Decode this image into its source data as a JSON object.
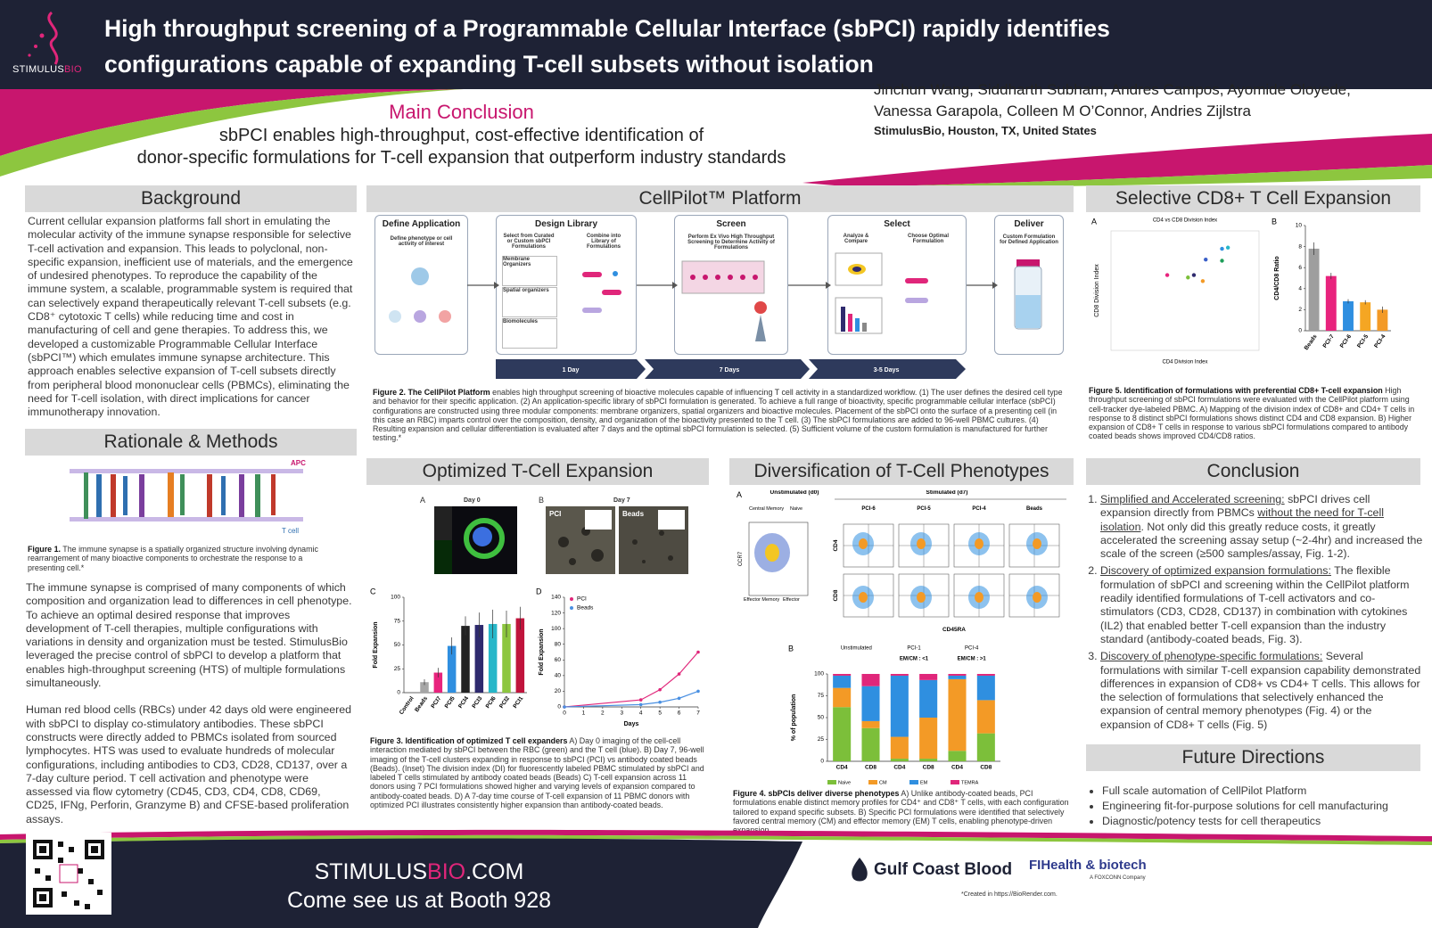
{
  "header": {
    "logo_parts": [
      "STIMULUS",
      "BIO"
    ],
    "title_lines": [
      "High throughput screening of a Programmable Cellular Interface (sbPCI) rapidly identifies",
      "configurations capable of expanding T-cell subsets without isolation"
    ],
    "main_conclusion": {
      "heading": "Main Conclusion",
      "lines": [
        "sbPCI enables high-throughput, cost-effective identification of",
        "donor-specific formulations for T-cell expansion that outperform industry standards"
      ]
    },
    "authors_lines": [
      "Jinchun Wang, Siddharth Subham, Andres Campos, Ayomide Oloyede,",
      "Vanessa Garapola, Colleen M O’Connor, Andries Zijlstra"
    ],
    "affiliation": "StimulusBio, Houston, TX, United States"
  },
  "background": {
    "heading": "Background",
    "text": "Current cellular expansion platforms fall short in emulating the molecular activity of the immune synapse responsible for selective T-cell activation and expansion. This leads to polyclonal, non-specific expansion, inefficient use of materials, and the emergence of undesired phenotypes. To reproduce the capability of the immune system, a scalable, programmable system is required that can selectively expand therapeutically relevant T-cell subsets (e.g. CD8⁺ cytotoxic T cells) while reducing time and cost in manufacturing of cell and gene therapies. To address this, we developed a customizable Programmable Cellular Interface (sbPCI™) which emulates immune synapse architecture. This approach enables selective expansion of T-cell subsets directly from peripheral blood mononuclear cells (PBMCs), eliminating the need for T-cell isolation, with direct implications for cancer immunotherapy innovation."
  },
  "rationale": {
    "heading": "Rationale & Methods",
    "figure_labels": {
      "top": "APC",
      "bottom": "T cell"
    },
    "caption_label": "Figure 1.",
    "caption": " The immune synapse is a spatially organized structure involving dynamic rearrangement of many bioactive components to orchestrate the response to a presenting cell.*",
    "paragraphs": [
      "The immune synapse is comprised of many components of which composition and organization lead to differences in cell phenotype. To achieve an optimal desired response that improves development of T-cell therapies, multiple configurations with variations in density and organization must be tested. StimulusBio leveraged the precise control of sbPCI to develop a platform that enables high-throughput screening (HTS) of multiple formulations simultaneously.",
      "Human red blood cells (RBCs) under 42 days old were engineered with sbPCI to display co-stimulatory antibodies. These sbPCI constructs were directly added to PBMCs isolated from sourced lymphocytes. HTS was used to evaluate hundreds of molecular configurations, including antibodies to CD3, CD28, CD137, over a 7-day culture period. T cell activation and phenotype were assessed via flow cytometry (CD45, CD3, CD4, CD8, CD69, CD25, IFNg, Perforin, Granzyme B) and CFSE-based proliferation assays."
    ]
  },
  "platform": {
    "heading": "CellPilot™ Platform",
    "steps": [
      {
        "title": "Define Application",
        "notes": [
          "Define phenotype or cell activity of interest"
        ]
      },
      {
        "title": "Design Library",
        "notes": [
          "Select from Curated or Custom sbPCI Formulations",
          "Combine into Library of Formulations",
          "Membrane Organizers",
          "Spatial organizers",
          "Biomolecules"
        ]
      },
      {
        "title": "Screen",
        "notes": [
          "Perform Ex Vivo High Throughput Screening to Determine Activity of Formulations"
        ]
      },
      {
        "title": "Select",
        "notes": [
          "Analyze & Compare",
          "Choose Optimal Formulation"
        ]
      },
      {
        "title": "Deliver",
        "notes": [
          "Custom Formulation for Defined Application"
        ]
      }
    ],
    "timeline": [
      "1 Day",
      "7 Days",
      "3-5 Days"
    ],
    "caption_label": "Figure 2. The CellPilot Platform",
    "caption": " enables high throughput screening of bioactive molecules capable of influencing T cell activity in a standardized workflow. (1) The user defines the desired cell type and behavior for their specific application. (2) An application-specific library of sbPCI formulation is generated. To achieve a full range of bioactivity, specific programmable cellular interface (sbPCI) configurations are constructed using three modular components: membrane organizers, spatial organizers and bioactive molecules. Placement of the sbPCI onto the surface of a presenting cell (in this case an RBC) imparts control over the composition, density, and organization of the bioactivity presented to the T cell. (3) The sbPCI formulations are added to 96-well PBMC cultures. (4) Resulting expansion and cellular differentiation is evaluated after 7 days and the optimal sbPCI formulation is selected. (5) Sufficient volume of the custom formulation is manufactured for further testing.*"
  },
  "optimized": {
    "heading": "Optimized T-Cell Expansion",
    "panel_a": {
      "letter": "A",
      "label": "Day 0"
    },
    "panel_b": {
      "letter": "B",
      "label": "Day 7",
      "wells": [
        "PCI",
        "Beads"
      ]
    },
    "caption_label": "Figure 3. Identification of optimized T cell expanders",
    "caption": " A) Day 0 imaging of the cell-cell interaction mediated by sbPCI between the RBC (green) and the T cell (blue). B) Day 7, 96-well imaging of the T-cell clusters expanding in response to sbPCI (PCI) vs antibody coated beads (Beads). (Inset) The division index (DI) for fluorescently labeled PBMC stimulated by sbPCI and labeled T cells stimulated by antibody coated beads (Beads) C) T-cell expansion across 11 donors using 7 PCI formulations showed higher and varying levels of expansion compared to antibody-coated beads. D) A 7-day time course of T-cell expansion of 11 PBMC donors with optimized PCI illustrates consistently higher expansion than antibody-coated beads."
  },
  "diversification": {
    "heading": "Diversification of T-Cell Phenotypes",
    "fig4a": {
      "letter": "A",
      "unstimulated": "Unstimulated (d0)",
      "stimulated": "Stimulated (d7)",
      "columns": [
        "PCI-6",
        "PCI-5",
        "PCI-4",
        "Beads"
      ],
      "rows": [
        "CD4",
        "CD8"
      ],
      "x_label": "CD45RA",
      "y_label": "CCR7",
      "quadrants": [
        "Central Memory",
        "Naive",
        "Effector Memory",
        "Effector"
      ]
    },
    "caption_label": "Figure 4. sbPCIs deliver diverse phenotypes",
    "caption": " A) Unlike antibody-coated beads, PCI formulations enable distinct memory profiles for CD4⁺ and CD8⁺ T cells, with each configuration tailored to expand specific subsets. B) Specific PCI formulations were identified that selectively favored central memory (CM) and effector memory (EM) T cells, enabling phenotype-driven expansion."
  },
  "selective": {
    "heading": "Selective CD8+ T Cell Expansion",
    "caption_label": "Figure 5. Identification of formulations with preferential CD8+ T-cell expansion",
    "caption": " High throughput screening of sbPCI formulations were evaluated with the CellPilot platform using cell-tracker dye-labeled PBMC. A) Mapping of the division index of CD8+ and CD4+ T cells in response to 8 distinct sbPCI formulations shows distinct CD4 and CD8 expansion. B) Higher expansion of CD8+ T cells in response to various sbPCI formulations compared to antibody coated beads shows improved CD4/CD8 ratios."
  },
  "conclusion": {
    "heading": "Conclusion",
    "items": [
      {
        "lead": "Simplified and Accelerated screening:",
        "text": " sbPCI drives cell expansion directly from PBMCs ",
        "underlined": "without the need for T-cell isolation",
        "text_after": ". Not only did this greatly reduce costs, it greatly accelerated the screening assay setup (~2-4hr) and increased the scale of the screen (≥500 samples/assay, Fig. 1-2)."
      },
      {
        "lead": "Discovery of optimized expansion formulations:",
        "text": " The flexible formulation of sbPCI and screening within the CellPilot platform readily identified formulations of T-cell activators and co-stimulators (CD3, CD28, CD137) in combination with cytokines (IL2) that enabled better T-cell expansion than the industry standard (antibody-coated beads, Fig. 3)."
      },
      {
        "lead": "Discovery of phenotype-specific formulations:",
        "text": " Several formulations with similar T-cell expansion capability demonstrated differences in expansion of CD8+ vs CD4+ T cells. This allows for the selection of formulations that selectively enhanced the expansion of central memory phenotypes (Fig. 4) or the expansion of CD8+ T cells (Fig. 5)"
      }
    ]
  },
  "future": {
    "heading": "Future Directions",
    "items": [
      "Full scale automation of CellPilot Platform",
      "Engineering fit-for-purpose solutions for cell manufacturing",
      "Diagnostic/potency tests for cell therapeutics"
    ]
  },
  "footer": {
    "site_parts": [
      "STIMULUS",
      "BIO",
      ".COM"
    ],
    "booth": "Come see us at Booth 928",
    "sponsor_1": "Gulf Coast Blood",
    "sponsor_2_parts": [
      "FI",
      "Health & biotech"
    ],
    "sponsor_2_sub": "A FOXCONN Company",
    "credit": "*Created in https://BioRender.com."
  },
  "chart_data": [
    {
      "type": "bar",
      "panel": "C",
      "y_label": "Fold Expansion",
      "categories": [
        "Control",
        "Beads",
        "PCI7",
        "PCI5",
        "PCI4",
        "PCI3",
        "PCI6",
        "PCI2",
        "PCI1"
      ],
      "values": [
        0,
        11,
        21,
        49,
        70,
        71,
        72,
        72,
        78
      ],
      "errors": [
        0,
        3,
        5,
        9,
        10,
        13,
        15,
        14,
        12
      ],
      "colors": [
        "#9e9e9e",
        "#a6a6a6",
        "#e8237d",
        "#2f8fe0",
        "#222222",
        "#2e2a6e",
        "#27b7c9",
        "#8dc63f",
        "#c0143c"
      ],
      "ylim": [
        0,
        100
      ],
      "yticks": [
        0,
        25,
        50,
        75,
        100
      ]
    },
    {
      "type": "line",
      "panel": "D",
      "y_label": "Fold Expansion",
      "x_label": "Days",
      "x": [
        0,
        4,
        5,
        6,
        7
      ],
      "series": [
        {
          "name": "PCI",
          "color": "#e0267a",
          "values": [
            0,
            9,
            22,
            42,
            70
          ]
        },
        {
          "name": "Beads",
          "color": "#4a90e2",
          "values": [
            0,
            3,
            6,
            11,
            20
          ]
        }
      ],
      "xlim": [
        0,
        7
      ],
      "xticks": [
        0,
        1,
        2,
        3,
        4,
        5,
        6,
        7
      ],
      "ylim": [
        0,
        140
      ],
      "yticks": [
        0,
        20,
        40,
        60,
        80,
        100,
        120,
        140
      ]
    },
    {
      "type": "stacked_bar",
      "panel": "B",
      "y_label": "% of population",
      "categories": [
        "CD4",
        "CD8",
        "CD4",
        "CD8",
        "CD4",
        "CD8"
      ],
      "groups": [
        {
          "label": "Unstimulated"
        },
        {
          "label": "PCI-1",
          "note": "EM/CM : <1"
        },
        {
          "label": "PCI-4",
          "note": "EM/CM : >1"
        }
      ],
      "series": [
        {
          "name": "Naive",
          "color": "#7cbf3a",
          "values": [
            62,
            38,
            3,
            3,
            12,
            32
          ]
        },
        {
          "name": "CM",
          "color": "#f39a26",
          "values": [
            22,
            8,
            25,
            47,
            82,
            38
          ]
        },
        {
          "name": "EM",
          "color": "#2f8fe0",
          "values": [
            14,
            40,
            70,
            43,
            4,
            28
          ]
        },
        {
          "name": "TEMRA",
          "color": "#e0267a",
          "values": [
            2,
            14,
            2,
            7,
            2,
            2
          ]
        }
      ],
      "ylim": [
        0,
        100
      ],
      "yticks": [
        0,
        25,
        50,
        75,
        100
      ]
    },
    {
      "type": "scatter",
      "panel": "A",
      "title": "CD4 vs CD8 Division Index",
      "x_label": "CD4 Division Index",
      "y_label": "CD8 Division Index",
      "x": [
        3.8,
        5.2,
        5.6,
        6.2,
        6.4,
        7.5,
        7.5,
        7.9
      ],
      "values": [
        6.3,
        6.1,
        6.3,
        5.8,
        7.6,
        7.5,
        8.5,
        8.6
      ],
      "colors": [
        "#e8237d",
        "#7cbf3a",
        "#2f2a6e",
        "#f39a26",
        "#3a5fc8",
        "#1f9e5a",
        "#2f8fe0",
        "#27b7c9"
      ],
      "xlim": [
        0,
        10
      ],
      "ylim": [
        0,
        10
      ]
    },
    {
      "type": "bar",
      "panel": "B",
      "y_label": "CD4/CD8 Ratio",
      "categories": [
        "Beads",
        "PCI-7",
        "PCI-6",
        "PCI-5",
        "PCI-4"
      ],
      "values": [
        7.8,
        5.2,
        2.8,
        2.7,
        2.0
      ],
      "errors": [
        0.6,
        0.3,
        0.2,
        0.2,
        0.3
      ],
      "colors": [
        "#9e9e9e",
        "#e8237d",
        "#2f8fe0",
        "#f5a623",
        "#f39a26"
      ],
      "ylim": [
        0,
        10
      ],
      "yticks": [
        0,
        2,
        4,
        6,
        8,
        10
      ]
    }
  ]
}
